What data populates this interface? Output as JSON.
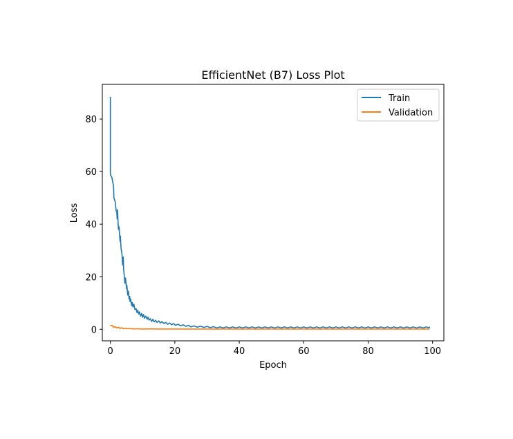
{
  "chart_data": {
    "type": "line",
    "title": "EfficientNet (B7) Loss Plot",
    "xlabel": "Epoch",
    "ylabel": "Loss",
    "xlim": [
      -2.5,
      103.5
    ],
    "ylim": [
      -4.4,
      93.2
    ],
    "xticks": [
      0,
      20,
      40,
      60,
      80,
      100
    ],
    "yticks": [
      0,
      20,
      40,
      60,
      80
    ],
    "grid": false,
    "legend_position": "top-right",
    "series": [
      {
        "name": "Train",
        "color": "#1f77b4",
        "points": [
          [
            0,
            88.5
          ],
          [
            0,
            59.5
          ],
          [
            0.1,
            58.5
          ],
          [
            0.4,
            58.0
          ],
          [
            0.5,
            57.5
          ],
          [
            0.9,
            55.0
          ],
          [
            1,
            54.0
          ],
          [
            1.1,
            50.0
          ],
          [
            1.5,
            48.5
          ],
          [
            1.8,
            45.0
          ],
          [
            2,
            44.5
          ],
          [
            2.1,
            42.0
          ],
          [
            2.2,
            45.5
          ],
          [
            2.5,
            38.0
          ],
          [
            2.7,
            39.0
          ],
          [
            3,
            33.5
          ],
          [
            3.1,
            35.5
          ],
          [
            3.3,
            31.0
          ],
          [
            3.6,
            28.5
          ],
          [
            3.8,
            24.5
          ],
          [
            4,
            27.5
          ],
          [
            4.1,
            23.0
          ],
          [
            4.3,
            20.5
          ],
          [
            4.5,
            17.5
          ],
          [
            4.7,
            19.5
          ],
          [
            5,
            15.5
          ],
          [
            5.1,
            16.8
          ],
          [
            5.4,
            13.0
          ],
          [
            5.6,
            14.5
          ],
          [
            5.8,
            11.5
          ],
          [
            6,
            12.5
          ],
          [
            6.1,
            10.5
          ],
          [
            6.3,
            11.5
          ],
          [
            6.6,
            9.0
          ],
          [
            6.8,
            10.2
          ],
          [
            7,
            8.5
          ],
          [
            7.3,
            9.5
          ],
          [
            7.6,
            7.5
          ],
          [
            8,
            7.8
          ],
          [
            8.3,
            6.3
          ],
          [
            8.5,
            7.2
          ],
          [
            8.8,
            5.8
          ],
          [
            9,
            6.6
          ],
          [
            9.4,
            5.0
          ],
          [
            9.7,
            6.0
          ],
          [
            10,
            4.6
          ],
          [
            10.3,
            5.6
          ],
          [
            10.6,
            4.2
          ],
          [
            11,
            5.0
          ],
          [
            11.4,
            3.8
          ],
          [
            11.7,
            4.6
          ],
          [
            12,
            3.5
          ],
          [
            12.4,
            4.0
          ],
          [
            12.8,
            3.0
          ],
          [
            13.2,
            3.8
          ],
          [
            13.6,
            2.8
          ],
          [
            14,
            3.4
          ],
          [
            14.5,
            2.6
          ],
          [
            15,
            3.2
          ],
          [
            15.5,
            2.4
          ],
          [
            16,
            2.9
          ],
          [
            16.6,
            2.2
          ],
          [
            17.2,
            2.6
          ],
          [
            17.8,
            1.9
          ],
          [
            18.4,
            2.4
          ],
          [
            19,
            1.7
          ],
          [
            19.6,
            2.2
          ],
          [
            20.2,
            1.5
          ],
          [
            21,
            1.9
          ],
          [
            21.8,
            1.3
          ],
          [
            22.6,
            1.7
          ],
          [
            23.4,
            1.1
          ],
          [
            24.2,
            1.5
          ],
          [
            25,
            0.9
          ],
          [
            26,
            1.3
          ],
          [
            27,
            0.8
          ],
          [
            28,
            1.2
          ],
          [
            29,
            0.7
          ],
          [
            30,
            1.1
          ],
          [
            31,
            0.6
          ],
          [
            32,
            1.0
          ],
          [
            33,
            0.5
          ],
          [
            34,
            0.9
          ],
          [
            35,
            0.5
          ],
          [
            36,
            0.9
          ],
          [
            37,
            0.5
          ],
          [
            38,
            0.9
          ],
          [
            39,
            0.5
          ],
          [
            40,
            0.9
          ],
          [
            41,
            0.5
          ],
          [
            42,
            0.9
          ],
          [
            43,
            0.5
          ],
          [
            44,
            0.9
          ],
          [
            45,
            0.5
          ],
          [
            46,
            0.9
          ],
          [
            47,
            0.5
          ],
          [
            48,
            0.9
          ],
          [
            49,
            0.5
          ],
          [
            50,
            0.9
          ],
          [
            51,
            0.5
          ],
          [
            52,
            0.9
          ],
          [
            53,
            0.5
          ],
          [
            54,
            0.9
          ],
          [
            55,
            0.5
          ],
          [
            56,
            0.9
          ],
          [
            57,
            0.5
          ],
          [
            58,
            0.9
          ],
          [
            59,
            0.5
          ],
          [
            60,
            0.9
          ],
          [
            61,
            0.5
          ],
          [
            62,
            0.9
          ],
          [
            63,
            0.5
          ],
          [
            64,
            0.9
          ],
          [
            65,
            0.5
          ],
          [
            66,
            0.9
          ],
          [
            67,
            0.5
          ],
          [
            68,
            0.9
          ],
          [
            69,
            0.5
          ],
          [
            70,
            0.9
          ],
          [
            71,
            0.5
          ],
          [
            72,
            0.9
          ],
          [
            73,
            0.5
          ],
          [
            74,
            0.9
          ],
          [
            75,
            0.5
          ],
          [
            76,
            0.9
          ],
          [
            77,
            0.5
          ],
          [
            78,
            0.9
          ],
          [
            79,
            0.5
          ],
          [
            80,
            0.9
          ],
          [
            81,
            0.5
          ],
          [
            82,
            0.9
          ],
          [
            83,
            0.5
          ],
          [
            84,
            0.9
          ],
          [
            85,
            0.5
          ],
          [
            86,
            0.9
          ],
          [
            87,
            0.5
          ],
          [
            88,
            0.9
          ],
          [
            89,
            0.5
          ],
          [
            90,
            0.9
          ],
          [
            91,
            0.5
          ],
          [
            92,
            0.9
          ],
          [
            93,
            0.5
          ],
          [
            94,
            0.9
          ],
          [
            95,
            0.5
          ],
          [
            96,
            0.9
          ],
          [
            97,
            0.5
          ],
          [
            98,
            0.9
          ],
          [
            99,
            0.5
          ],
          [
            99,
            1.0
          ]
        ]
      },
      {
        "name": "Validation",
        "color": "#ff7f0e",
        "points": [
          [
            0,
            1.6
          ],
          [
            0.3,
            1.3
          ],
          [
            0.6,
            1.5
          ],
          [
            1,
            0.7
          ],
          [
            1.5,
            1.0
          ],
          [
            2,
            0.5
          ],
          [
            2.5,
            0.8
          ],
          [
            3,
            0.3
          ],
          [
            3.5,
            0.6
          ],
          [
            4,
            0.2
          ],
          [
            4.5,
            0.4
          ],
          [
            5,
            0.2
          ],
          [
            6,
            0.3
          ],
          [
            7,
            0.1
          ],
          [
            8,
            0.2
          ],
          [
            10,
            0.1
          ],
          [
            12,
            0.15
          ],
          [
            15,
            0.1
          ],
          [
            20,
            0.1
          ],
          [
            30,
            0.1
          ],
          [
            40,
            0.1
          ],
          [
            50,
            0.1
          ],
          [
            60,
            0.1
          ],
          [
            70,
            0.1
          ],
          [
            80,
            0.1
          ],
          [
            90,
            0.1
          ],
          [
            99,
            0.1
          ]
        ]
      }
    ]
  }
}
